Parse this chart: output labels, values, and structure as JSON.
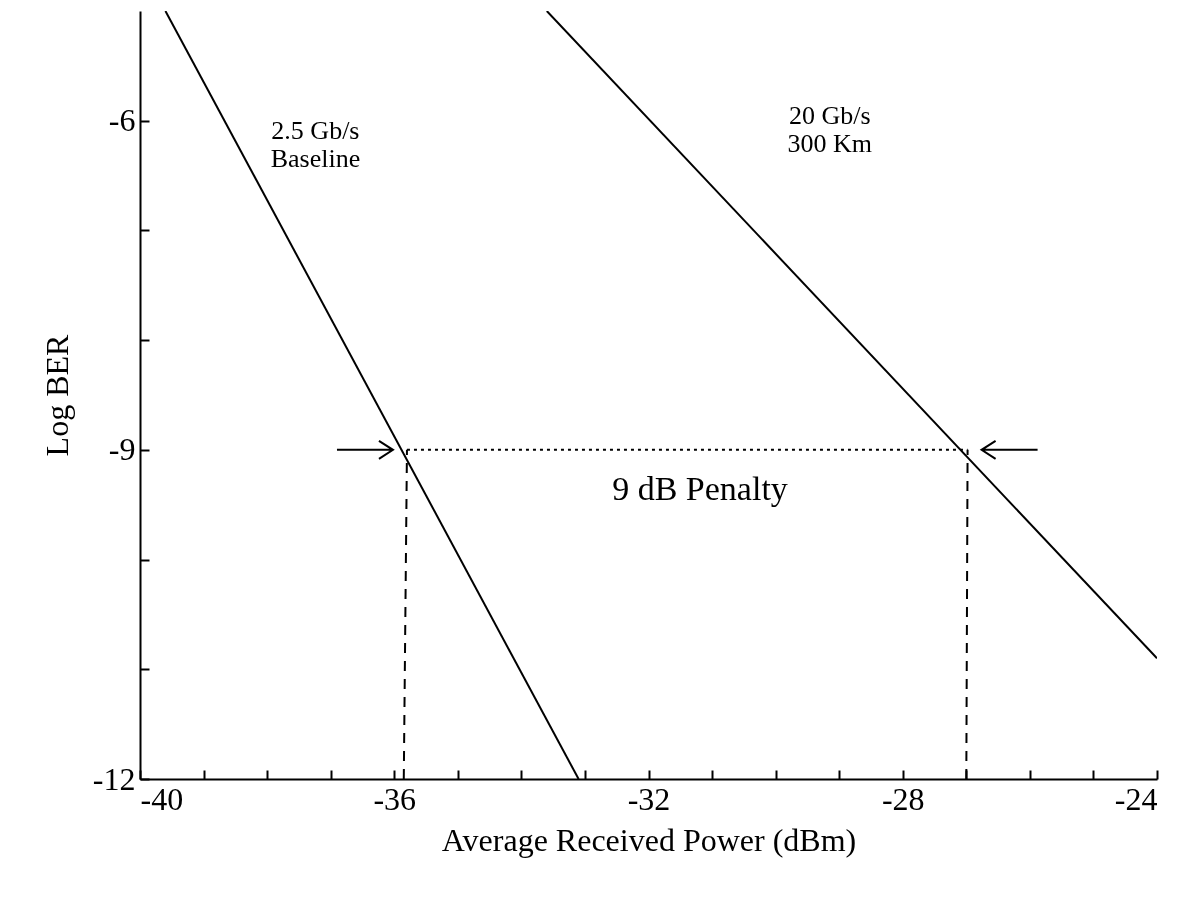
{
  "chart_data": {
    "type": "line",
    "xlabel": "Average Received Power (dBm)",
    "ylabel": "Log BER",
    "xlim": [
      -40,
      -24
    ],
    "ylim": [
      -12,
      -5
    ],
    "xticks": [
      -40,
      {
        "value": -39,
        "label": null
      },
      {
        "value": -38,
        "label": null
      },
      {
        "value": -37,
        "label": null
      },
      -36,
      {
        "value": -35,
        "label": null
      },
      {
        "value": -34,
        "label": null
      },
      {
        "value": -33,
        "label": null
      },
      -32,
      {
        "value": -31,
        "label": null
      },
      {
        "value": -30,
        "label": null
      },
      {
        "value": -29,
        "label": null
      },
      -28,
      {
        "value": -27,
        "label": null
      },
      {
        "value": -26,
        "label": null
      },
      {
        "value": -25,
        "label": null
      },
      -24
    ],
    "yticks": [
      -12,
      {
        "value": -11,
        "label": null
      },
      {
        "value": -10,
        "label": null
      },
      -9,
      {
        "value": -8,
        "label": null
      },
      {
        "value": -7,
        "label": null
      },
      -6
    ],
    "grid": false,
    "marker": "none",
    "series": [
      {
        "name": "2.5 Gb/s\nBaseline",
        "color": "#000000",
        "x": [
          -39.6,
          -33.1
        ],
        "values": [
          -5,
          -12
        ]
      },
      {
        "name": "20 Gb/s\n300 Km",
        "color": "#000000",
        "x": [
          -33.6,
          -24
        ],
        "values": [
          -5,
          -10.9
        ]
      },
      {
        "color": "#000000",
        "x": [
          -35.85,
          -35.8
        ],
        "values": [
          -12,
          -9
        ],
        "line_style": "dashed"
      },
      {
        "color": "#000000",
        "x": [
          -27.0,
          -26.98
        ],
        "values": [
          -12,
          -9
        ],
        "line_style": "dashed"
      },
      {
        "color": "#000000",
        "x": [
          -35.8,
          -26.98
        ],
        "values": [
          -9,
          -9
        ],
        "line_style": "dotted"
      }
    ],
    "annotations": [
      "9 dB Penalty"
    ]
  }
}
